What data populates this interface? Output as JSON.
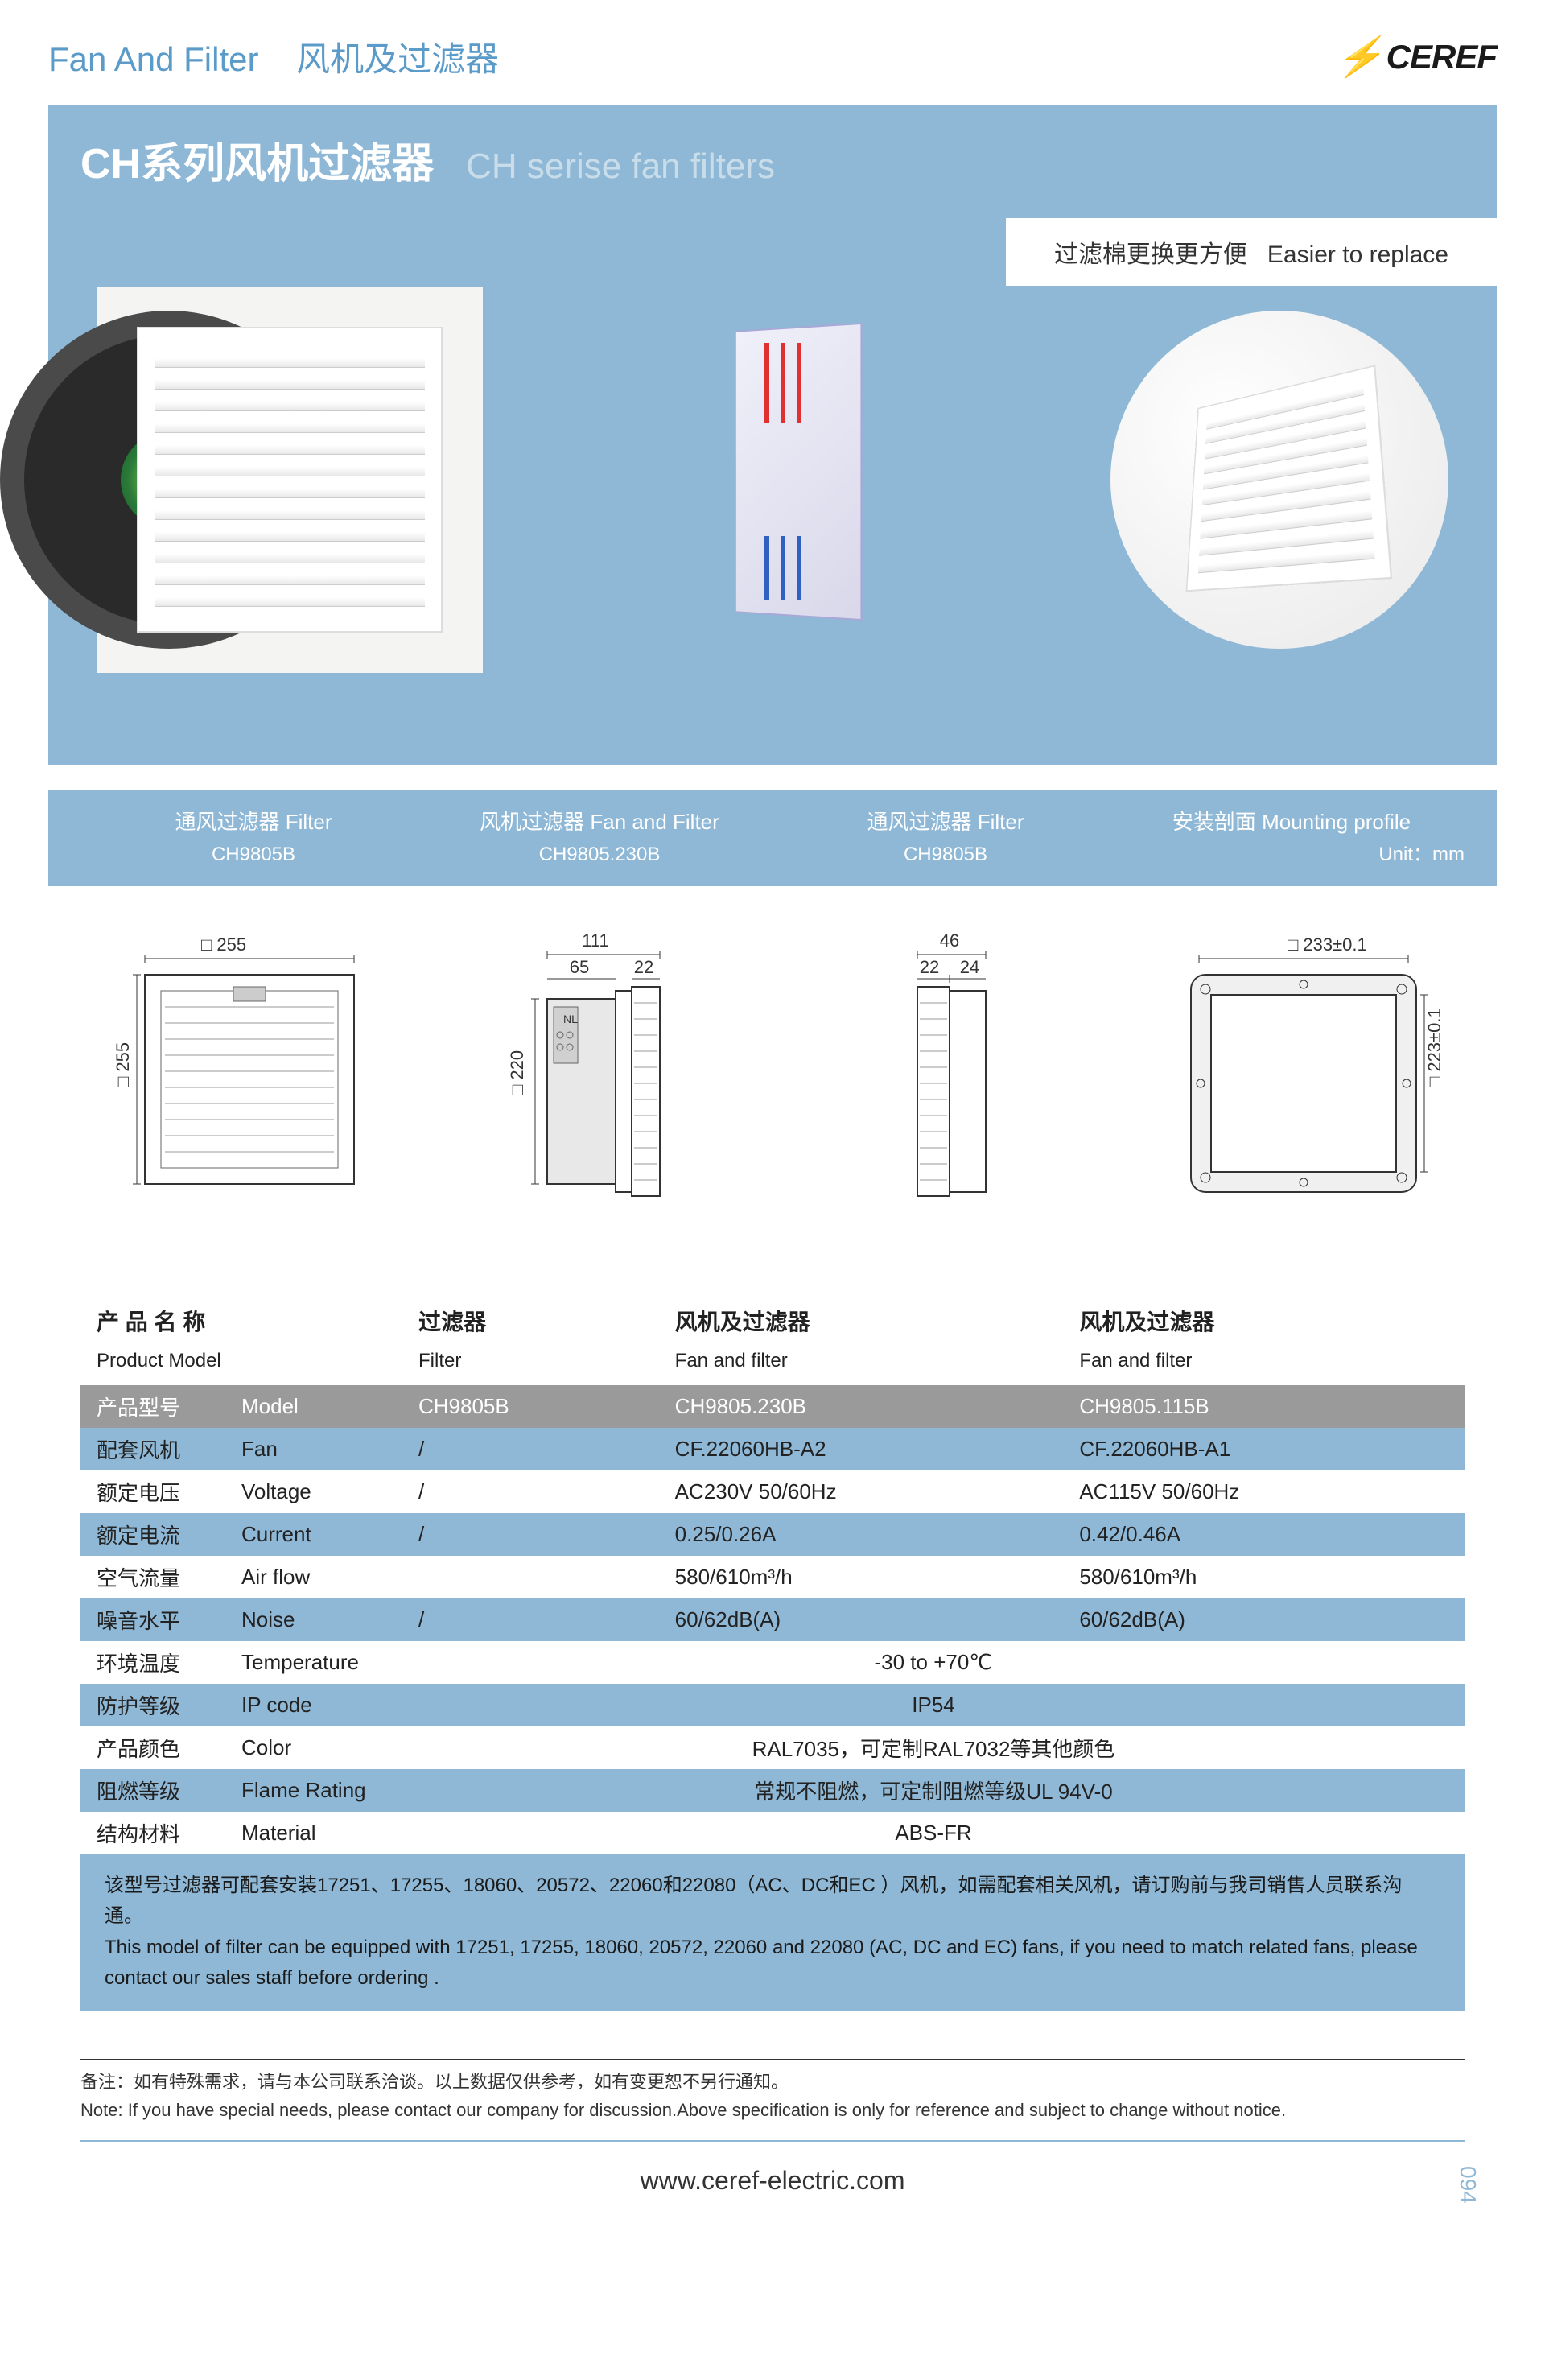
{
  "header": {
    "category_en": "Fan And Filter",
    "category_cn": "风机及过滤器",
    "brand": "CEREF"
  },
  "hero": {
    "title_cn": "CH系列风机过滤器",
    "title_en": "CH serise fan filters",
    "tagline_cn": "过滤棉更换更方便",
    "tagline_en": "Easier to replace"
  },
  "diagram_headers": [
    {
      "cn": "通风过滤器  Filter",
      "sub": "CH9805B"
    },
    {
      "cn": "风机过滤器  Fan and Filter",
      "sub": "CH9805.230B"
    },
    {
      "cn": "通风过滤器  Filter",
      "sub": "CH9805B"
    },
    {
      "cn": "安装剖面  Mounting profile",
      "sub": "Unit：mm"
    }
  ],
  "drawings": {
    "d1": {
      "w": "255",
      "h": "255",
      "sq": "□"
    },
    "d2": {
      "w": "111",
      "w2": "22",
      "w3": "65",
      "h": "220"
    },
    "d3": {
      "w": "46",
      "w2": "22",
      "w3": "24"
    },
    "d4": {
      "w": "233±0.1",
      "h": "223±0.1"
    }
  },
  "table": {
    "headers": {
      "name_cn": "产 品 名 称",
      "name_en": "Product Model",
      "c1_cn": "过滤器",
      "c1_en": "Filter",
      "c2_cn": "风机及过滤器",
      "c2_en": "Fan and filter",
      "c3_cn": "风机及过滤器",
      "c3_en": "Fan and filter"
    },
    "rows": [
      {
        "class": "model-row",
        "cn": "产品型号",
        "en": "Model",
        "v1": "CH9805B",
        "v2": "CH9805.230B",
        "v3": "CH9805.115B"
      },
      {
        "class": "blue-row",
        "cn": "配套风机",
        "en": "Fan",
        "v1": "/",
        "v2": "CF.22060HB-A2",
        "v3": "CF.22060HB-A1"
      },
      {
        "class": "",
        "cn": "额定电压",
        "en": "Voltage",
        "v1": "/",
        "v2": "AC230V 50/60Hz",
        "v3": "AC115V 50/60Hz"
      },
      {
        "class": "blue-row",
        "cn": "额定电流",
        "en": "Current",
        "v1": "/",
        "v2": "0.25/0.26A",
        "v3": "0.42/0.46A"
      },
      {
        "class": "",
        "cn": "空气流量",
        "en": "Air flow",
        "v1": "",
        "v2": "580/610m³/h",
        "v3": "580/610m³/h"
      },
      {
        "class": "blue-row",
        "cn": "噪音水平",
        "en": "Noise",
        "v1": "/",
        "v2": "60/62dB(A)",
        "v3": "60/62dB(A)"
      },
      {
        "class": "",
        "cn": "环境温度",
        "en": "Temperature",
        "span": "-30 to +70℃"
      },
      {
        "class": "blue-row",
        "cn": "防护等级",
        "en": "IP code",
        "span": "IP54"
      },
      {
        "class": "",
        "cn": "产品颜色",
        "en": "Color",
        "span": "RAL7035，可定制RAL7032等其他颜色"
      },
      {
        "class": "blue-row",
        "cn": "阻燃等级",
        "en": "Flame Rating",
        "span": "常规不阻燃，可定制阻燃等级UL 94V-0"
      },
      {
        "class": "",
        "cn": "结构材料",
        "en": "Material",
        "span": "ABS-FR"
      }
    ]
  },
  "note": {
    "cn": "该型号过滤器可配套安装17251、17255、18060、20572、22060和22080（AC、DC和EC ）风机，如需配套相关风机，请订购前与我司销售人员联系沟通。",
    "en": "This model of filter can be equipped with 17251, 17255, 18060, 20572, 22060 and 22080 (AC, DC and EC) fans, if you need to match related fans, please contact our sales staff before ordering ."
  },
  "footnote": {
    "cn": "备注：如有特殊需求，请与本公司联系洽谈。以上数据仅供参考，如有变更恕不另行通知。",
    "en": "Note: If you have special needs, please contact our company for discussion.Above specification is only for reference and subject to change without notice."
  },
  "footer": {
    "url": "www.ceref-electric.com",
    "page": "094"
  },
  "colors": {
    "primary_blue": "#8fb8d6",
    "header_text": "#5a9bc9",
    "brand_green": "#3fa535",
    "model_row_gray": "#9a9a9a"
  }
}
